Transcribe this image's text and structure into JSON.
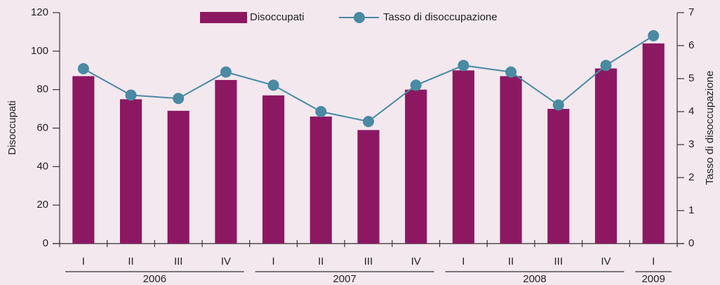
{
  "chart_data": {
    "type": "bar-line",
    "groups": [
      {
        "label": "2006",
        "categories": [
          "I",
          "II",
          "III",
          "IV"
        ]
      },
      {
        "label": "2007",
        "categories": [
          "I",
          "II",
          "III",
          "IV"
        ]
      },
      {
        "label": "2008",
        "categories": [
          "I",
          "II",
          "III",
          "IV"
        ]
      },
      {
        "label": "2009",
        "categories": [
          "I"
        ]
      }
    ],
    "series": [
      {
        "name": "Disoccupati",
        "type": "bar",
        "color": "#8c1862",
        "axis": "y",
        "values": [
          87,
          75,
          69,
          85,
          77,
          66,
          59,
          80,
          90,
          87,
          70,
          91,
          104
        ]
      },
      {
        "name": "Tasso di disoccupazione",
        "type": "line",
        "color": "#4a8aa3",
        "axis": "y2",
        "values": [
          5.3,
          4.5,
          4.4,
          5.2,
          4.8,
          4.0,
          3.7,
          4.8,
          5.4,
          5.2,
          4.2,
          5.4,
          6.3
        ]
      }
    ],
    "ylabel": "Disoccupati",
    "y2label": "Tasso di disoccupazione",
    "ylim": [
      0,
      120
    ],
    "yticks": [
      0,
      20,
      40,
      60,
      80,
      100,
      120
    ],
    "y2lim": [
      0,
      7
    ],
    "y2ticks": [
      0,
      1,
      2,
      3,
      4,
      5,
      6,
      7
    ],
    "legend": "top"
  }
}
